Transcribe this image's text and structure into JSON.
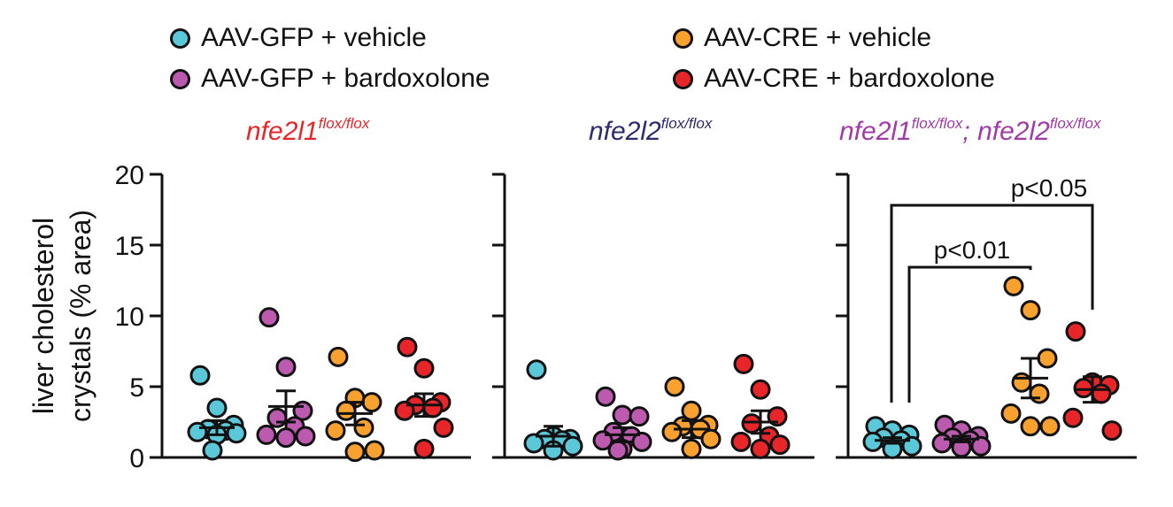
{
  "legend": [
    {
      "label": "AAV-GFP + vehicle",
      "color": "#5BC8DA"
    },
    {
      "label": "AAV-GFP + bardoxolone",
      "color": "#BB5AAF"
    },
    {
      "label": "AAV-CRE + vehicle",
      "color": "#F9A12E"
    },
    {
      "label": "AAV-CRE + bardoxolone",
      "color": "#E8262A"
    }
  ],
  "chart_data": {
    "type": "scatter",
    "ylabel_line1": "liver cholesterol",
    "ylabel_line2": "crystals (% area)",
    "ylim": [
      0,
      20
    ],
    "yticks": [
      "0",
      "5",
      "10",
      "15",
      "20"
    ],
    "panels": [
      {
        "title_gene": "nfe2l1",
        "title_sup": "flox/flox",
        "title_color": "#E8262A",
        "groups": [
          {
            "color": "#5BC8DA",
            "points": [
              5.8,
              3.5,
              2.3,
              2.0,
              1.9,
              1.8,
              1.7,
              1.6,
              0.5
            ],
            "mean": 2.1,
            "sem": 0.5
          },
          {
            "color": "#BB5AAF",
            "points": [
              9.9,
              6.4,
              3.3,
              2.8,
              2.2,
              1.6,
              1.5,
              1.4
            ],
            "mean": 3.6,
            "sem": 1.1
          },
          {
            "color": "#F9A12E",
            "points": [
              7.1,
              4.2,
              3.9,
              3.3,
              2.1,
              1.9,
              0.5,
              0.4
            ],
            "mean": 3.1,
            "sem": 0.8
          },
          {
            "color": "#E8262A",
            "points": [
              7.8,
              6.3,
              3.9,
              3.7,
              3.5,
              3.3,
              2.1,
              0.6
            ],
            "mean": 3.7,
            "sem": 0.8
          }
        ]
      },
      {
        "title_gene": "nfe2l2",
        "title_sup": "flox/flox",
        "title_color": "#2E2A6E",
        "groups": [
          {
            "color": "#5BC8DA",
            "points": [
              6.2,
              1.5,
              1.3,
              1.3,
              1.2,
              1.0,
              0.8,
              0.5
            ],
            "mean": 1.5,
            "sem": 0.7
          },
          {
            "color": "#BB5AAF",
            "points": [
              4.3,
              3.0,
              2.9,
              1.8,
              1.5,
              1.2,
              1.1,
              0.6,
              0.5
            ],
            "mean": 1.6,
            "sem": 0.5
          },
          {
            "color": "#F9A12E",
            "points": [
              5.0,
              3.3,
              2.3,
              2.2,
              2.0,
              1.8,
              1.3,
              0.6
            ],
            "mean": 2.0,
            "sem": 0.6
          },
          {
            "color": "#E8262A",
            "points": [
              6.6,
              4.8,
              2.9,
              2.4,
              1.5,
              1.1,
              0.9,
              0.6
            ],
            "mean": 2.5,
            "sem": 0.8
          }
        ]
      },
      {
        "title_gene": "nfe2l1",
        "title_sup": "flox/flox",
        "title_sep": "; ",
        "title_gene2": "nfe2l2",
        "title_sup2": "flox/flox",
        "title_color": "#A03AA8",
        "groups": [
          {
            "color": "#5BC8DA",
            "points": [
              2.2,
              1.9,
              1.6,
              1.4,
              1.2,
              1.1,
              0.8,
              0.6
            ],
            "mean": 1.2,
            "sem": 0.2
          },
          {
            "color": "#BB5AAF",
            "points": [
              2.3,
              1.9,
              1.5,
              1.4,
              1.2,
              1.0,
              0.8,
              0.7
            ],
            "mean": 1.3,
            "sem": 0.2
          },
          {
            "color": "#F9A12E",
            "points": [
              12.1,
              10.4,
              7.0,
              5.3,
              4.5,
              3.1,
              2.2,
              2.2
            ],
            "mean": 5.6,
            "sem": 1.4
          },
          {
            "color": "#E8262A",
            "points": [
              8.9,
              5.3,
              5.1,
              4.9,
              4.5,
              2.8,
              1.9
            ],
            "mean": 4.8,
            "sem": 0.9
          }
        ],
        "annotations": [
          {
            "text": "p<0.01",
            "from_group": 0,
            "to_group": 2
          },
          {
            "text": "p<0.05",
            "from_group": 0,
            "to_group": 3
          }
        ]
      }
    ]
  }
}
